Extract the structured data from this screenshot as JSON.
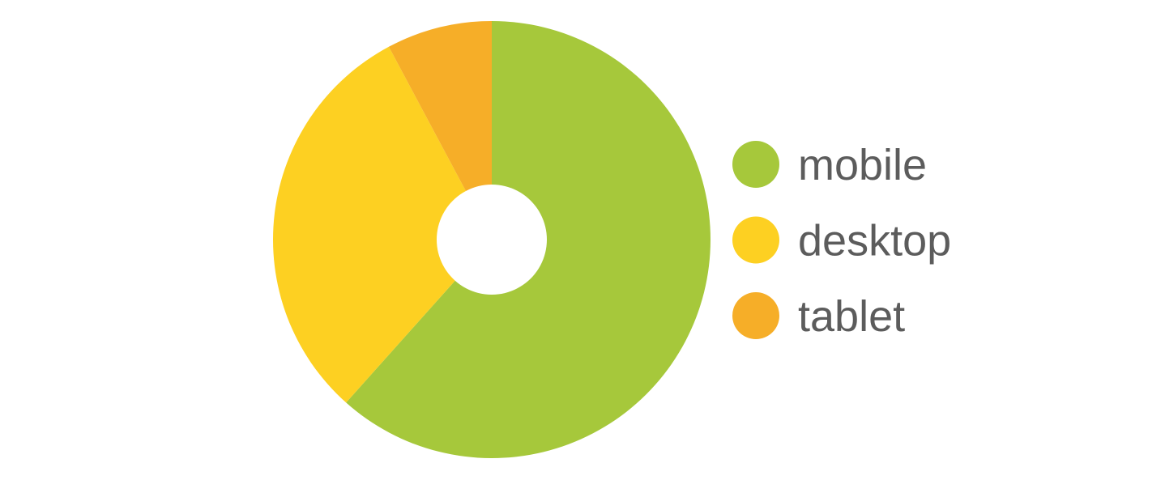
{
  "chart_data": {
    "type": "pie",
    "donut": true,
    "title": "",
    "categories": [
      "mobile",
      "desktop",
      "tablet"
    ],
    "values": [
      61.6,
      30.6,
      7.8
    ],
    "colors": [
      "#a6c83b",
      "#fdd022",
      "#f6ae28"
    ],
    "legend": {
      "placement": "right",
      "entries": [
        "mobile",
        "desktop",
        "tablet"
      ]
    },
    "start_angle": "12 o'clock",
    "direction": "clockwise"
  }
}
